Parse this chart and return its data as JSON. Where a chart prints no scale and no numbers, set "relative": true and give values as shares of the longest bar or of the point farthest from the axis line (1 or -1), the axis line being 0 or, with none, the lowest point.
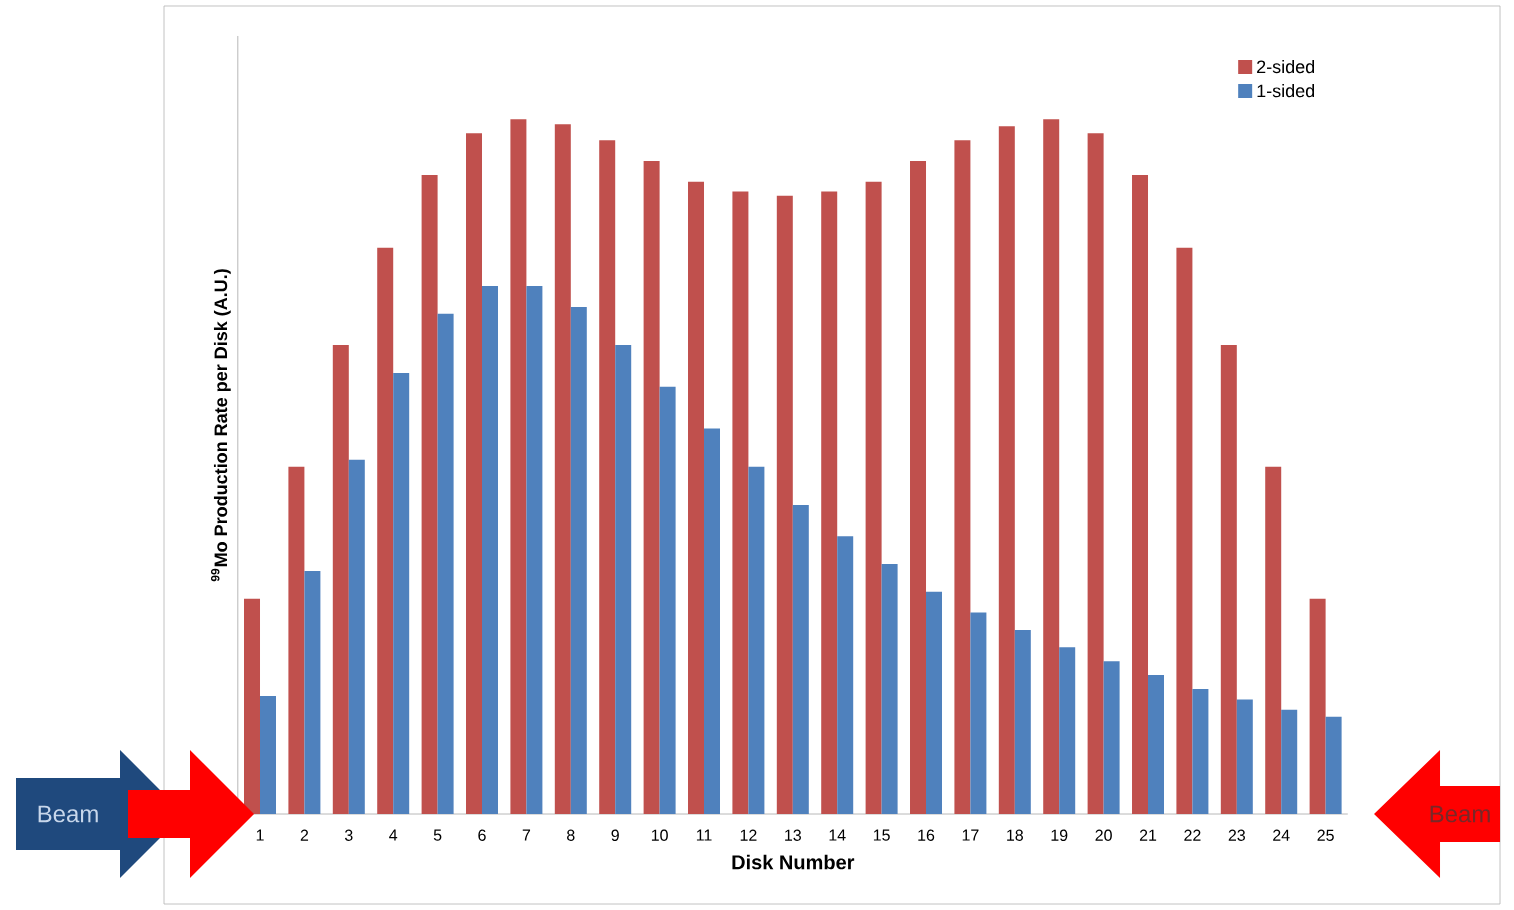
{
  "chart_data": {
    "type": "bar",
    "relative": true,
    "xlabel": "Disk Number",
    "ylabel": "$^{99}$Mo Production Rate per Disk (A.U.)",
    "categories": [
      "1",
      "2",
      "3",
      "4",
      "5",
      "6",
      "7",
      "8",
      "9",
      "10",
      "11",
      "12",
      "13",
      "14",
      "15",
      "16",
      "17",
      "18",
      "19",
      "20",
      "21",
      "22",
      "23",
      "24",
      "25"
    ],
    "series": [
      {
        "name": "2-sided",
        "color": "#c0504d",
        "values": [
          0.31,
          0.5,
          0.675,
          0.815,
          0.92,
          0.98,
          1.0,
          0.993,
          0.97,
          0.94,
          0.91,
          0.896,
          0.89,
          0.896,
          0.91,
          0.94,
          0.97,
          0.99,
          1.0,
          0.98,
          0.92,
          0.815,
          0.675,
          0.5,
          0.31
        ]
      },
      {
        "name": "1-sided",
        "color": "#4f81bd",
        "values": [
          0.17,
          0.35,
          0.51,
          0.635,
          0.72,
          0.76,
          0.76,
          0.73,
          0.675,
          0.615,
          0.555,
          0.5,
          0.445,
          0.4,
          0.36,
          0.32,
          0.29,
          0.265,
          0.24,
          0.22,
          0.2,
          0.18,
          0.165,
          0.15,
          0.14
        ]
      }
    ],
    "legend": "top right",
    "annotations": [
      "Beam",
      "Beam"
    ]
  }
}
